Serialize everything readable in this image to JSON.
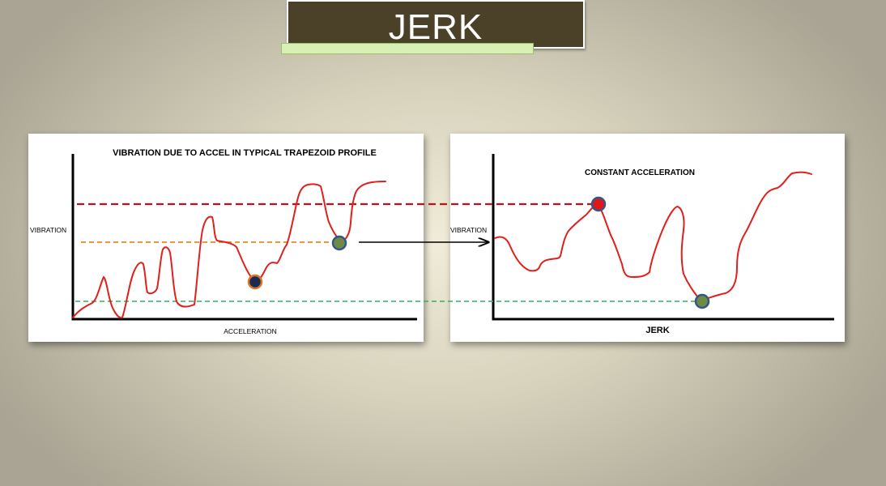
{
  "slide": {
    "title": "JERK"
  },
  "left_panel": {
    "title": "VIBRATION DUE TO ACCEL IN TYPICAL TRAPEZOID PROFILE",
    "ylabel": "VIBRATION",
    "xlabel": "ACCELERATION"
  },
  "right_panel": {
    "title": "CONSTANT ACCELERATION",
    "ylabel": "VIBRATION",
    "xlabel": "JERK"
  },
  "colors": {
    "title_bg": "#4a4128",
    "accent_bar": "#d7f0b4",
    "curve": "#e0201c",
    "red_dashed": "#c0101a",
    "orange_dashed": "#e08a2a",
    "green_dashed": "#2fb35a",
    "marker_navy": "#1b2a4e",
    "marker_orange_ring": "#d8762a",
    "marker_green": "#6e8a45",
    "marker_blue_ring": "#35578a",
    "marker_red": "#e01818"
  }
}
